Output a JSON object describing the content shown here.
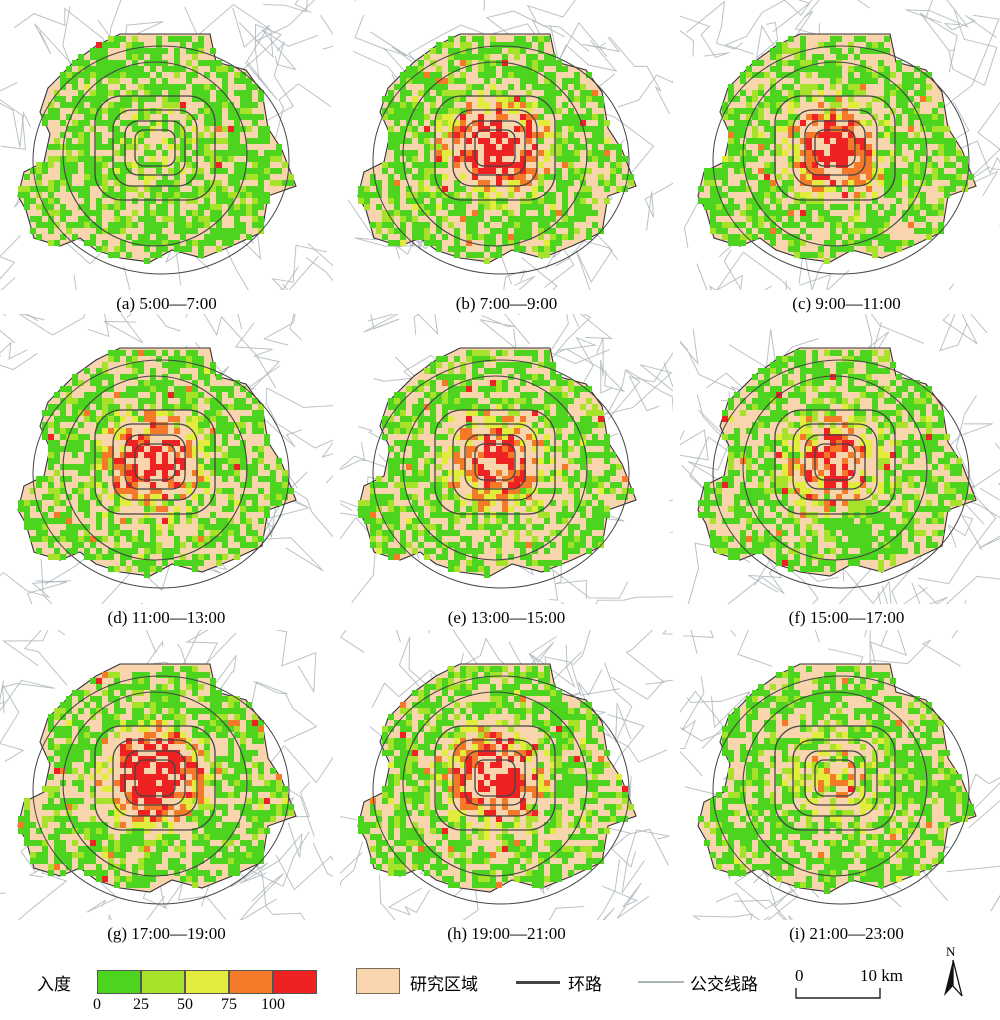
{
  "panels": [
    {
      "label": "(a) 5:00—7:00",
      "level": 0.15
    },
    {
      "label": "(b) 7:00—9:00",
      "level": 0.9
    },
    {
      "label": "(c) 9:00—11:00",
      "level": 0.75
    },
    {
      "label": "(d) 11:00—13:00",
      "level": 0.8
    },
    {
      "label": "(e) 13:00—15:00",
      "level": 0.7
    },
    {
      "label": "(f) 15:00—17:00",
      "level": 0.65
    },
    {
      "label": "(g) 17:00—19:00",
      "level": 0.95
    },
    {
      "label": "(h) 19:00—21:00",
      "level": 0.85
    },
    {
      "label": "(i) 21:00—23:00",
      "level": 0.35
    }
  ],
  "legend": {
    "title": "入度",
    "ramp_colors": [
      "#4cd41e",
      "#a6e22a",
      "#e2ec3c",
      "#f47a2a",
      "#ee2222"
    ],
    "ticks": [
      "0",
      "25",
      "50",
      "75",
      "100"
    ],
    "study_area_label": "研究区域",
    "study_area_color": "#f8d5ad",
    "ring_road_label": "环路",
    "ring_road_color": "#444444",
    "bus_line_label": "公交线路",
    "bus_line_color": "#a9b3b8",
    "scale_start": "0",
    "scale_end": "10 km",
    "north_label": "N"
  }
}
